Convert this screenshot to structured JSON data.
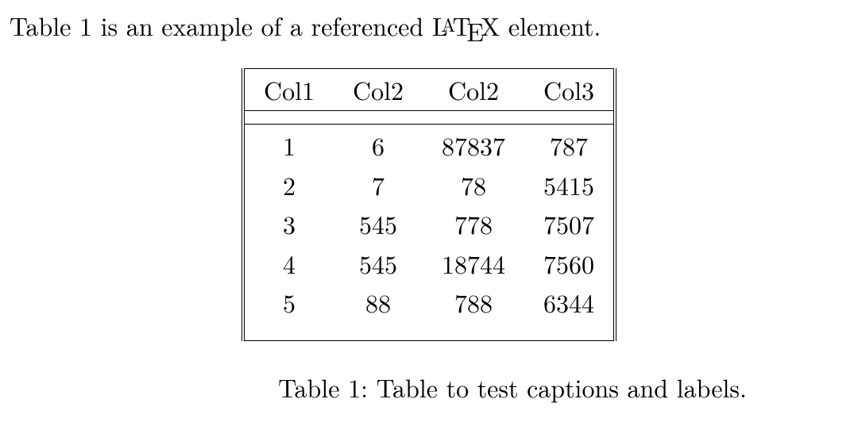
{
  "intro": {
    "before": "Table 1 is an example of a referenced ",
    "latex": {
      "L": "L",
      "A": "A",
      "T": "T",
      "E": "E",
      "X": "X"
    },
    "after": " element."
  },
  "table": {
    "type": "table",
    "columns": [
      "Col1",
      "Col2",
      "Col2",
      "Col3"
    ],
    "rows": [
      [
        "1",
        "6",
        "87837",
        "787"
      ],
      [
        "2",
        "7",
        "78",
        "5415"
      ],
      [
        "3",
        "545",
        "778",
        "7507"
      ],
      [
        "4",
        "545",
        "18744",
        "7560"
      ],
      [
        "5",
        "88",
        "788",
        "6344"
      ]
    ],
    "column_alignment": [
      "center",
      "center",
      "center",
      "center"
    ],
    "border_color": "#000000",
    "background_color": "#ffffff",
    "text_color": "#000000",
    "fontsize": 32,
    "outer_vertical_rule": "double",
    "hline_after_header": "double"
  },
  "caption": {
    "label": "Table 1:",
    "text": " Table to test captions and labels."
  }
}
